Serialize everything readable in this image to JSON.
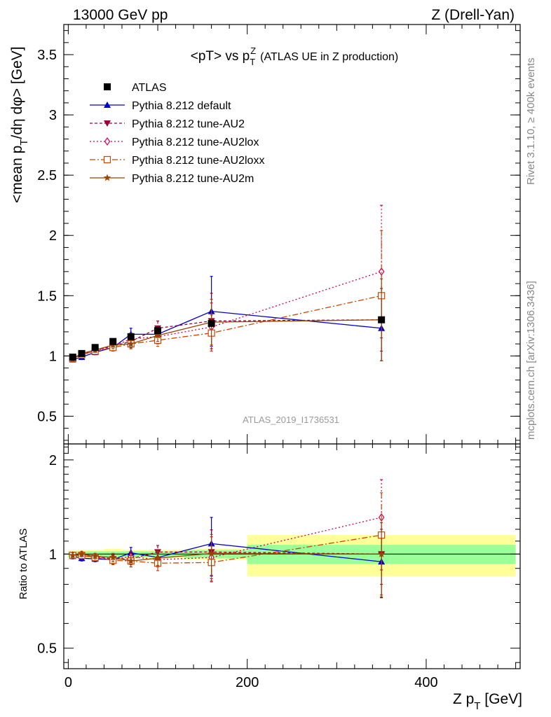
{
  "header": {
    "left": "13000 GeV pp",
    "right": "Z (Drell-Yan)"
  },
  "side_text": {
    "top": "Rivet 3.1.10, ≥ 400k events",
    "bottom": "mcplots.cern.ch [arXiv:1306.3436]"
  },
  "chart_data": [
    {
      "type": "line",
      "title": "<pT> vs p_T^Z (ATLAS UE in Z production)",
      "title_main": "<pT> vs p",
      "title_sub": "T",
      "title_sup": "Z",
      "title_tail": "(ATLAS UE in Z production)",
      "ylabel": "<mean p_T/dη dφ> [GeV]",
      "ylabel_parts": [
        "<mean p",
        "T",
        "/dη dφ> [GeV]"
      ],
      "watermark": "ATLAS_2019_I1736531",
      "xlim": [
        -5,
        505
      ],
      "ylim": [
        0.27,
        3.75
      ],
      "yticks": [
        0.5,
        1,
        1.5,
        2,
        2.5,
        3,
        3.5
      ],
      "ytick_labels": [
        "0.5",
        "1",
        "1.5",
        "2",
        "2.5",
        "3",
        "3.5"
      ],
      "legend_position": "top-left",
      "x": [
        5,
        15,
        30,
        50,
        70,
        100,
        160,
        350
      ],
      "data": {
        "name": "ATLAS",
        "values": [
          0.99,
          1.02,
          1.07,
          1.12,
          1.16,
          1.21,
          1.27,
          1.3
        ]
      },
      "series": [
        {
          "name": "Pythia 8.212 default",
          "color": "#0000cc",
          "dash": "",
          "marker": "triangle-up",
          "values": [
            0.97,
            0.99,
            1.03,
            1.07,
            1.18,
            1.18,
            1.37,
            1.23
          ],
          "errors": [
            0.02,
            0.02,
            0.02,
            0.03,
            0.05,
            0.06,
            0.29,
            0.27
          ]
        },
        {
          "name": "Pythia 8.212 tune-AU2",
          "color": "#990033",
          "dash": "4,3",
          "marker": "triangle-down",
          "values": [
            0.98,
            1.01,
            1.05,
            1.08,
            1.12,
            1.23,
            1.29,
            1.3
          ],
          "errors": [
            0.02,
            0.02,
            0.02,
            0.03,
            0.05,
            0.06,
            0.23,
            0.26
          ]
        },
        {
          "name": "Pythia 8.212 tune-AU2lox",
          "color": "#cc0055",
          "dash": "2,3",
          "marker": "diamond-open",
          "values": [
            0.98,
            1.01,
            1.04,
            1.08,
            1.14,
            1.16,
            1.24,
            1.7
          ],
          "errors": [
            0.02,
            0.02,
            0.02,
            0.03,
            0.05,
            0.06,
            0.2,
            0.55
          ]
        },
        {
          "name": "Pythia 8.212 tune-AU2loxx",
          "color": "#cc4400",
          "dash": "8,3,2,3",
          "marker": "square-open",
          "values": [
            0.98,
            1.01,
            1.04,
            1.07,
            1.1,
            1.13,
            1.19,
            1.5
          ],
          "errors": [
            0.02,
            0.02,
            0.02,
            0.03,
            0.04,
            0.05,
            0.15,
            0.54
          ]
        },
        {
          "name": "Pythia 8.212 tune-AU2m",
          "color": "#994400",
          "dash": "",
          "marker": "star",
          "values": [
            0.98,
            1.02,
            1.05,
            1.09,
            1.1,
            1.17,
            1.28,
            1.3
          ],
          "errors": [
            0.02,
            0.02,
            0.02,
            0.03,
            0.04,
            0.05,
            0.19,
            0.34
          ]
        }
      ]
    },
    {
      "type": "line",
      "title": "",
      "xlabel": "Z p_T [GeV]",
      "xlabel_parts": [
        "Z p",
        "T",
        " [GeV]"
      ],
      "ylabel": "Ratio to ATLAS",
      "xlim": [
        -5,
        505
      ],
      "ylim": [
        0.43,
        2.25
      ],
      "ylog": true,
      "xticks": [
        0,
        200,
        400
      ],
      "xtick_labels": [
        "0",
        "200",
        "400"
      ],
      "yticks": [
        0.5,
        1,
        2
      ],
      "ytick_labels": [
        "0.5",
        "1",
        "2"
      ],
      "bands": [
        {
          "x": [
            0,
            10,
            20,
            40,
            60,
            80,
            130,
            200,
            500
          ],
          "inner": [
            0.02,
            0.02,
            0.02,
            0.02,
            0.02,
            0.02,
            0.03,
            0.07
          ],
          "outer": [
            0.025,
            0.03,
            0.03,
            0.04,
            0.03,
            0.03,
            0.04,
            0.15
          ]
        }
      ],
      "x": [
        5,
        15,
        30,
        50,
        70,
        100,
        160,
        350
      ],
      "series": [
        {
          "name": "Pythia 8.212 default",
          "color": "#0000cc",
          "dash": "",
          "marker": "triangle-up",
          "values": [
            0.985,
            0.97,
            0.965,
            0.96,
            1.01,
            0.975,
            1.08,
            0.945
          ],
          "errors": [
            0.02,
            0.02,
            0.02,
            0.03,
            0.04,
            0.05,
            0.23,
            0.22
          ]
        },
        {
          "name": "Pythia 8.212 tune-AU2",
          "color": "#990033",
          "dash": "4,3",
          "marker": "triangle-down",
          "values": [
            0.99,
            0.99,
            0.98,
            0.965,
            0.965,
            1.015,
            1.015,
            1.0
          ],
          "errors": [
            0.02,
            0.02,
            0.02,
            0.03,
            0.04,
            0.05,
            0.18,
            0.2
          ]
        },
        {
          "name": "Pythia 8.212 tune-AU2lox",
          "color": "#cc0055",
          "dash": "2,3",
          "marker": "diamond-open",
          "values": [
            0.99,
            0.99,
            0.975,
            0.965,
            0.98,
            0.96,
            0.975,
            1.31
          ],
          "errors": [
            0.02,
            0.02,
            0.02,
            0.03,
            0.04,
            0.05,
            0.16,
            0.42
          ]
        },
        {
          "name": "Pythia 8.212 tune-AU2loxx",
          "color": "#cc4400",
          "dash": "8,3,2,3",
          "marker": "square-open",
          "values": [
            0.99,
            0.99,
            0.975,
            0.955,
            0.95,
            0.935,
            0.94,
            1.15
          ],
          "errors": [
            0.02,
            0.02,
            0.02,
            0.03,
            0.04,
            0.05,
            0.12,
            0.42
          ]
        },
        {
          "name": "Pythia 8.212 tune-AU2m",
          "color": "#994400",
          "dash": "",
          "marker": "star",
          "values": [
            0.99,
            1.0,
            0.985,
            0.975,
            0.95,
            0.97,
            1.005,
            1.0
          ],
          "errors": [
            0.02,
            0.02,
            0.02,
            0.03,
            0.04,
            0.05,
            0.15,
            0.26
          ]
        }
      ]
    }
  ],
  "colors": {
    "band_inner": "#99ff99",
    "band_outer": "#ffff99",
    "data_marker": "#000000",
    "frame": "#000000"
  }
}
